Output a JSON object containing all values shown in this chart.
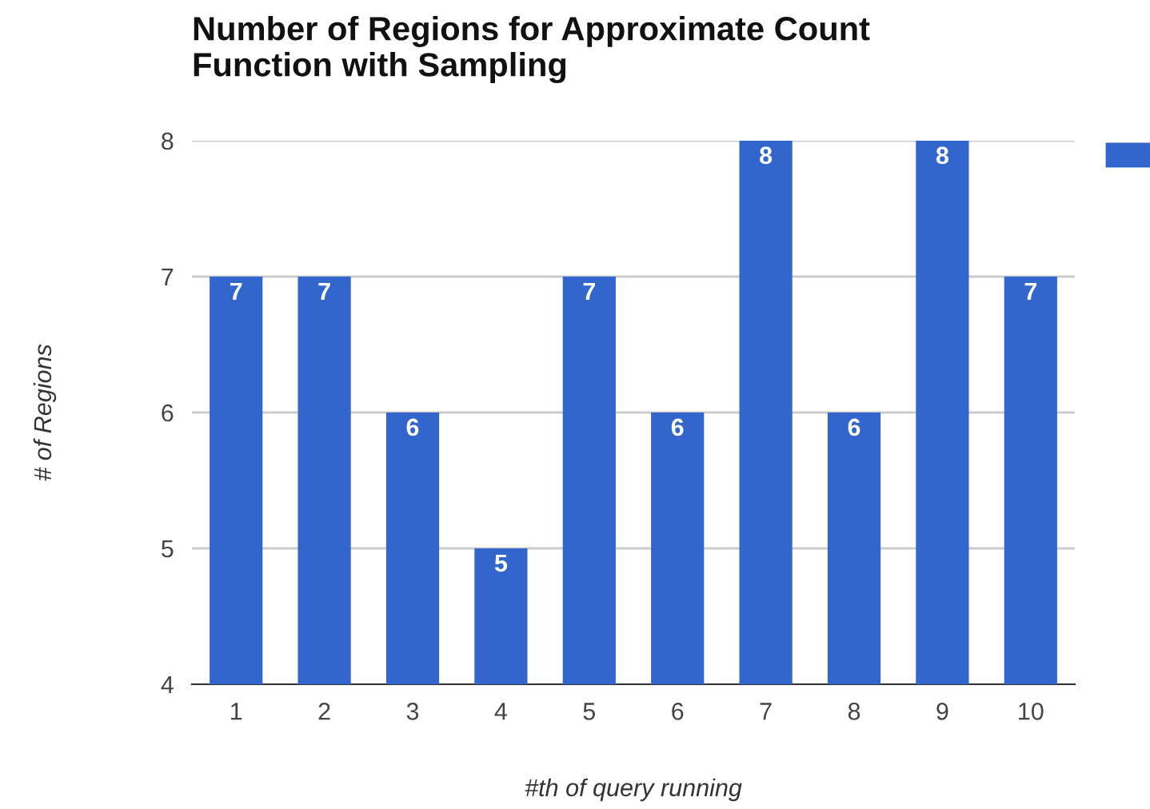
{
  "chart_data": {
    "type": "bar",
    "title": "Number of Regions for Approximate Count\nFunction with Sampling",
    "xlabel": "#th of query running",
    "ylabel": "# of Regions",
    "categories": [
      "1",
      "2",
      "3",
      "4",
      "5",
      "6",
      "7",
      "8",
      "9",
      "10"
    ],
    "values": [
      7,
      7,
      6,
      5,
      7,
      6,
      8,
      6,
      8,
      7
    ],
    "color": "#3366cc",
    "ylim": [
      4,
      8
    ],
    "yticks": [
      4,
      5,
      6,
      7,
      8
    ],
    "grid": "y",
    "data_labels": true
  }
}
